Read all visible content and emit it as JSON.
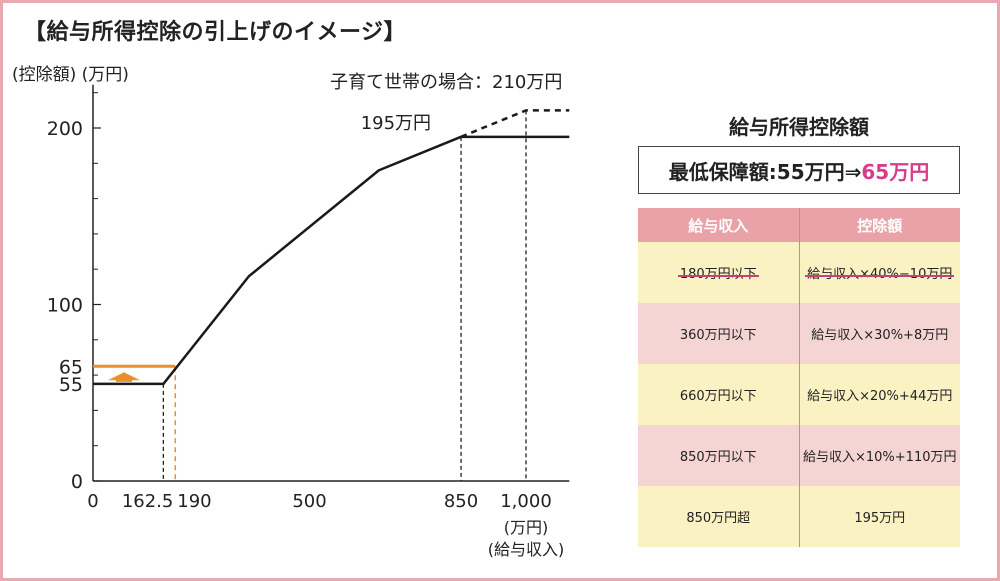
{
  "header": {
    "title": "【給与所得控除の引上げのイメージ】"
  },
  "chart_data": {
    "type": "line",
    "ylabel": "(控除額) (万円)",
    "xlabel_unit": "(万円)",
    "xlabel": "(給与収入)",
    "xlim": [
      0,
      1100
    ],
    "ylim": [
      0,
      220
    ],
    "x_ticks": [
      {
        "v": 0,
        "label": "0"
      },
      {
        "v": 162.5,
        "label": "162.5"
      },
      {
        "v": 190,
        "label": "190"
      },
      {
        "v": 500,
        "label": "500"
      },
      {
        "v": 850,
        "label": "850"
      },
      {
        "v": 1000,
        "label": "1,000"
      }
    ],
    "y_ticks": [
      {
        "v": 0,
        "label": "0"
      },
      {
        "v": 55,
        "label": "55"
      },
      {
        "v": 100,
        "label": "100"
      },
      {
        "v": 200,
        "label": "200"
      }
    ],
    "series": [
      {
        "style": "solid",
        "color": "#1a1a1a",
        "x": [
          0,
          162.5,
          360,
          660,
          850,
          1100
        ],
        "y": [
          55,
          55,
          116,
          176,
          195,
          195
        ]
      },
      {
        "style": "dashed",
        "color": "#1a1a1a",
        "x": [
          850,
          1000,
          1100
        ],
        "y": [
          195,
          210,
          210
        ]
      }
    ],
    "highlight": {
      "label": "65",
      "value": 65,
      "x_end": 190,
      "color": "#e8902a"
    },
    "annotations": {
      "cap": "195万円",
      "childcare": "子育て世帯の場合：210万円"
    }
  },
  "panel": {
    "title": "給与所得控除額",
    "min_prefix": "最低保障額:55万円⇒",
    "min_new": "65万円",
    "col_income": "給与収入",
    "col_deduction": "控除額",
    "rows": [
      {
        "income": "180万円以下",
        "deduction": "給与収入×40%−10万円"
      },
      {
        "income": "360万円以下",
        "deduction": "給与収入×30%+8万円"
      },
      {
        "income": "660万円以下",
        "deduction": "給与収入×20%+44万円"
      },
      {
        "income": "850万円以下",
        "deduction": "給与収入×10%+110万円"
      },
      {
        "income": "850万円超",
        "deduction": "195万円"
      }
    ]
  }
}
